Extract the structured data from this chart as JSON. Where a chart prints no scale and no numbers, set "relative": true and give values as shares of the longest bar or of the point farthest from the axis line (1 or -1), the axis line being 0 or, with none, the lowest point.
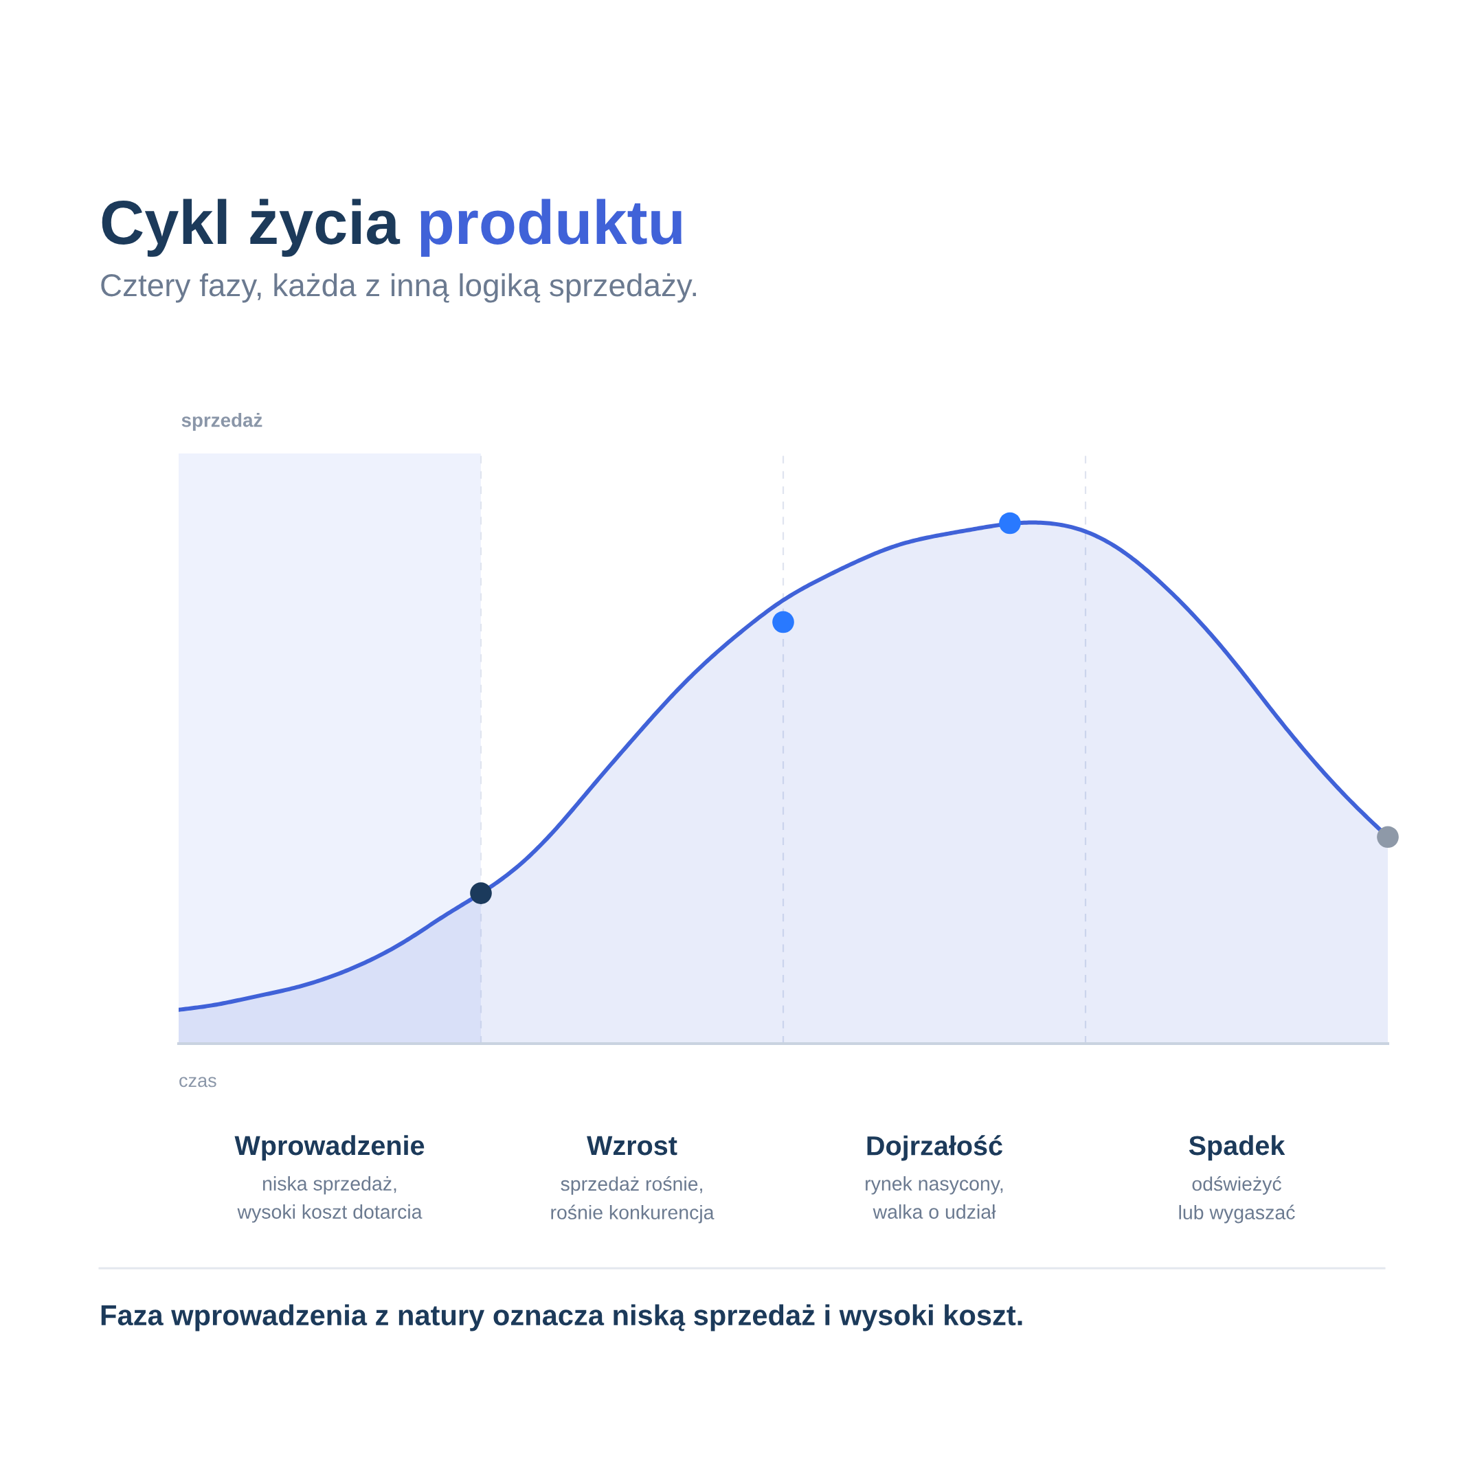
{
  "chart_data": {
    "type": "area",
    "title": "Cykl życia produktu",
    "subtitle": "Cztery fazy, każda z inną logiką sprzedaży.",
    "xlabel": "czas",
    "ylabel": "sprzedaż",
    "relative": true,
    "grid": "x",
    "categories": [
      null,
      null,
      null,
      null,
      "Wprowadzenie",
      null,
      null,
      null,
      null,
      null,
      null,
      null,
      "Wzrost",
      null,
      null,
      null,
      null,
      null,
      null,
      null,
      "Dojrzałość",
      null,
      null,
      null,
      null,
      null,
      null,
      null,
      "Spadek",
      null,
      null,
      null,
      null
    ],
    "series": [
      {
        "color": "#4062d8",
        "values": [
          0.065,
          0.075,
          0.09,
          0.106,
          0.128,
          0.158,
          0.197,
          0.244,
          0.289,
          0.342,
          0.414,
          0.499,
          0.583,
          0.664,
          0.736,
          0.798,
          0.852,
          0.893,
          0.928,
          0.957,
          0.975,
          0.988,
          0.999,
          1.0,
          0.984,
          0.945,
          0.885,
          0.812,
          0.727,
          0.634,
          0.546,
          0.467,
          0.397
        ]
      },
      {
        "type": "scatter",
        "marker": "circle",
        "values": [
          null,
          null,
          null,
          null,
          null,
          null,
          null,
          null,
          0.289,
          null,
          null,
          null,
          null,
          null,
          null,
          null,
          0.81,
          null,
          null,
          null,
          null,
          null,
          1.0,
          null,
          null,
          null,
          null,
          null,
          null,
          null,
          null,
          null,
          0.397
        ],
        "colors": [
          null,
          null,
          null,
          null,
          null,
          null,
          null,
          null,
          "#1b3a5c",
          null,
          null,
          null,
          null,
          null,
          null,
          null,
          "#2979ff",
          null,
          null,
          null,
          null,
          null,
          "#2979ff",
          null,
          null,
          null,
          null,
          null,
          null,
          null,
          null,
          null,
          "#8e99a8"
        ]
      }
    ],
    "annotations": [
      "niska sprzedaż,\nwysoki koszt dotarcia",
      "sprzedaż rośnie,\nrośnie konkurencja",
      "rynek nasycony,\nwalka o udział",
      "odświeżyć\nlub wygaszać",
      "Faza wprowadzenia z natury oznacza niską sprzedaż i wysoki koszt."
    ]
  }
}
